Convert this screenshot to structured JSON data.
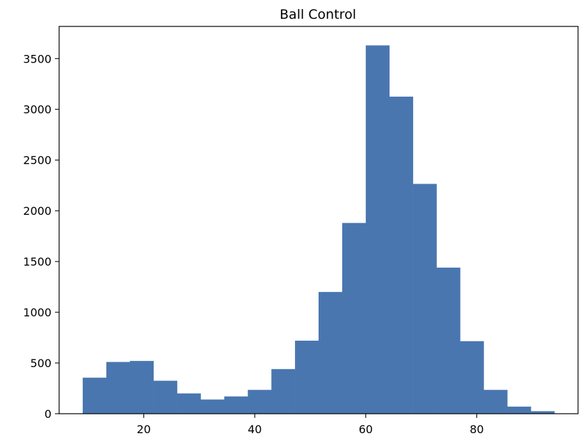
{
  "chart_data": {
    "type": "bar",
    "title": "Ball Control",
    "xlabel": "",
    "ylabel": "",
    "bar_color": "#4a76b0",
    "xlim": [
      4.75,
      98.25
    ],
    "ylim": [
      0,
      3817
    ],
    "grid": false,
    "bins": [
      {
        "x0": 9.0,
        "x1": 13.25,
        "count": 355
      },
      {
        "x0": 13.25,
        "x1": 17.5,
        "count": 510
      },
      {
        "x0": 17.5,
        "x1": 21.75,
        "count": 520
      },
      {
        "x0": 21.75,
        "x1": 26.0,
        "count": 325
      },
      {
        "x0": 26.0,
        "x1": 30.25,
        "count": 200
      },
      {
        "x0": 30.25,
        "x1": 34.5,
        "count": 140
      },
      {
        "x0": 34.5,
        "x1": 38.75,
        "count": 170
      },
      {
        "x0": 38.75,
        "x1": 43.0,
        "count": 235
      },
      {
        "x0": 43.0,
        "x1": 47.25,
        "count": 440
      },
      {
        "x0": 47.25,
        "x1": 51.5,
        "count": 720
      },
      {
        "x0": 51.5,
        "x1": 55.75,
        "count": 1200
      },
      {
        "x0": 55.75,
        "x1": 60.0,
        "count": 1880
      },
      {
        "x0": 60.0,
        "x1": 64.25,
        "count": 3630
      },
      {
        "x0": 64.25,
        "x1": 68.5,
        "count": 3125
      },
      {
        "x0": 68.5,
        "x1": 72.75,
        "count": 2265
      },
      {
        "x0": 72.75,
        "x1": 77.0,
        "count": 1440
      },
      {
        "x0": 77.0,
        "x1": 81.25,
        "count": 715
      },
      {
        "x0": 81.25,
        "x1": 85.5,
        "count": 235
      },
      {
        "x0": 85.5,
        "x1": 89.75,
        "count": 70
      },
      {
        "x0": 89.75,
        "x1": 94.0,
        "count": 25
      }
    ],
    "x_ticks": [
      {
        "value": 20,
        "label": "20"
      },
      {
        "value": 40,
        "label": "40"
      },
      {
        "value": 60,
        "label": "60"
      },
      {
        "value": 80,
        "label": "80"
      }
    ],
    "y_ticks": [
      {
        "value": 0,
        "label": "0"
      },
      {
        "value": 500,
        "label": "500"
      },
      {
        "value": 1000,
        "label": "1000"
      },
      {
        "value": 1500,
        "label": "1500"
      },
      {
        "value": 2000,
        "label": "2000"
      },
      {
        "value": 2500,
        "label": "2500"
      },
      {
        "value": 3000,
        "label": "3000"
      },
      {
        "value": 3500,
        "label": "3500"
      }
    ]
  }
}
